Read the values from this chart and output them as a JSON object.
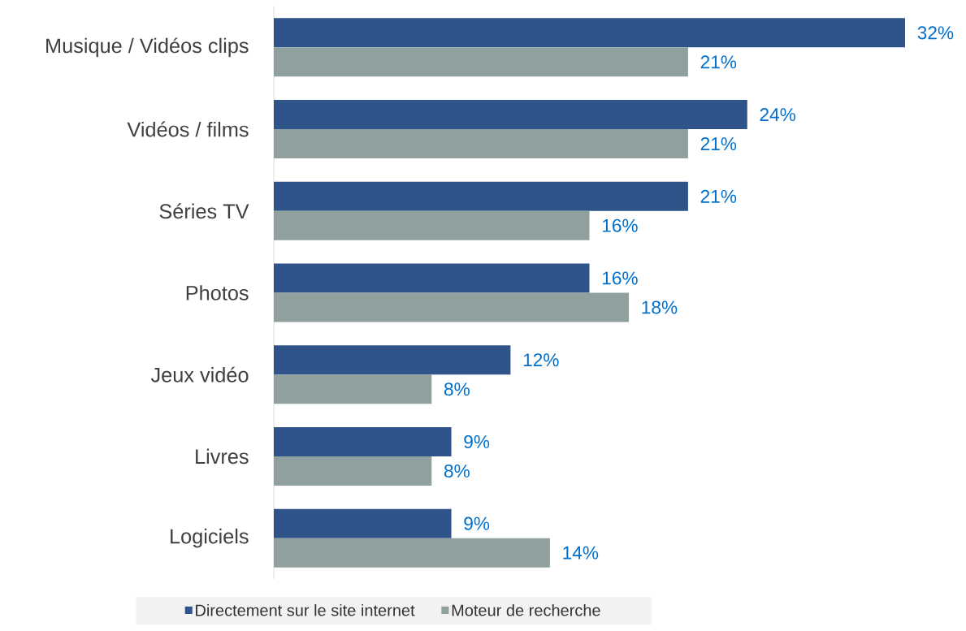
{
  "chart_data": {
    "type": "bar",
    "orientation": "horizontal",
    "legend": "bottom",
    "categories": [
      "Musique / Vidéos clips",
      "Vidéos / films",
      "Séries TV",
      "Photos",
      "Jeux vidéo",
      "Livres",
      "Logiciels"
    ],
    "series": [
      {
        "name": "Directement sur le site internet",
        "color": "#2e5489",
        "values": [
          32,
          24,
          21,
          16,
          12,
          9,
          9
        ],
        "value_labels": [
          "32%",
          "24%",
          "21%",
          "16%",
          "12%",
          "9%",
          "9%"
        ]
      },
      {
        "name": "Moteur de recherche",
        "color": "#8fa09e",
        "values": [
          21,
          21,
          16,
          18,
          8,
          8,
          14
        ],
        "value_labels": [
          "21%",
          "21%",
          "16%",
          "18%",
          "8%",
          "8%",
          "14%"
        ]
      }
    ]
  }
}
